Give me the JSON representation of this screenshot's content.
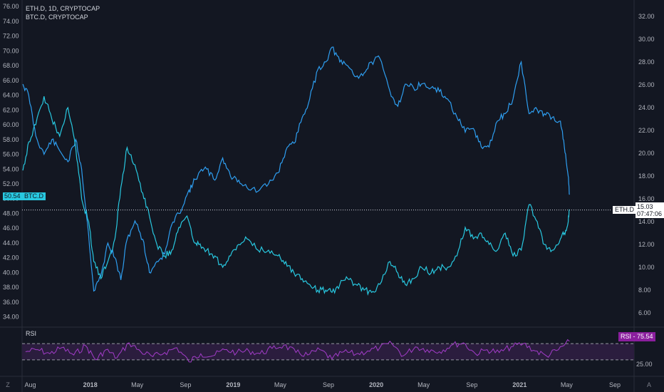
{
  "legend": {
    "eth_symbol": "ETH.D, 1D, CRYPTOCAP",
    "btc_symbol": "BTC.D, CRYPTOCAP"
  },
  "rsi_panel": {
    "title": "RSI",
    "label": "RSI",
    "value": "75.54",
    "level_text": "25.00",
    "upper_level": 70,
    "lower_level": 30
  },
  "tags": {
    "btc_value": "50.54",
    "btc_name": "BTC.D",
    "eth_name": "ETH.D",
    "eth_value": "15.03",
    "countdown": "07:47:06"
  },
  "corner_buttons": {
    "left": "Z",
    "right": "A"
  },
  "colors": {
    "background": "#131722",
    "btc_line": "#2e9ef0",
    "eth_line": "#28c8e0",
    "rsi_line": "#a33cc9",
    "rsi_band": "#2b1d3e",
    "rsi_tag": "#8b1f9e"
  },
  "chart_data": {
    "type": "line",
    "left_axis": {
      "ticks": [
        "76.00",
        "74.00",
        "72.00",
        "70.00",
        "68.00",
        "66.00",
        "64.00",
        "62.00",
        "60.00",
        "58.00",
        "56.00",
        "54.00",
        "52.00",
        "50.00",
        "48.00",
        "46.00",
        "44.00",
        "42.00",
        "40.00",
        "38.00",
        "36.00",
        "34.00"
      ],
      "ylim": [
        33,
        76.5
      ]
    },
    "right_axis": {
      "ticks": [
        "32.00",
        "30.00",
        "28.00",
        "26.00",
        "24.00",
        "22.00",
        "20.00",
        "18.00",
        "16.00",
        "14.00",
        "12.00",
        "10.00",
        "8.00",
        "6.00"
      ],
      "ylim": [
        5,
        33.2
      ]
    },
    "x_ticks": [
      "Aug",
      "2018",
      "May",
      "Sep",
      "2019",
      "May",
      "Sep",
      "2020",
      "May",
      "Sep",
      "2021",
      "May",
      "Sep"
    ],
    "x_tick_dates": [
      "2017-08-01",
      "2018-01-01",
      "2018-05-01",
      "2018-09-01",
      "2019-01-01",
      "2019-05-01",
      "2019-09-01",
      "2020-01-01",
      "2020-05-01",
      "2020-09-01",
      "2021-01-01",
      "2021-05-01",
      "2021-09-01"
    ],
    "xlim": [
      "2017-07-11",
      "2021-10-20"
    ],
    "series": [
      {
        "name": "BTC.D",
        "axis": "left",
        "points": [
          [
            "2017-07-13",
            65.5
          ],
          [
            "2017-07-28",
            64.0
          ],
          [
            "2017-08-15",
            58.5
          ],
          [
            "2017-09-05",
            56.0
          ],
          [
            "2017-09-25",
            58.0
          ],
          [
            "2017-10-15",
            56.5
          ],
          [
            "2017-11-05",
            55.0
          ],
          [
            "2017-11-25",
            58.0
          ],
          [
            "2017-12-10",
            54.0
          ],
          [
            "2017-12-28",
            45.0
          ],
          [
            "2018-01-10",
            37.5
          ],
          [
            "2018-01-28",
            39.5
          ],
          [
            "2018-02-15",
            44.0
          ],
          [
            "2018-03-05",
            42.0
          ],
          [
            "2018-03-20",
            39.0
          ],
          [
            "2018-04-05",
            44.5
          ],
          [
            "2018-04-25",
            47.0
          ],
          [
            "2018-05-15",
            44.5
          ],
          [
            "2018-06-01",
            40.0
          ],
          [
            "2018-06-20",
            41.5
          ],
          [
            "2018-07-10",
            42.5
          ],
          [
            "2018-07-28",
            46.5
          ],
          [
            "2018-08-15",
            48.0
          ],
          [
            "2018-09-05",
            50.5
          ],
          [
            "2018-09-20",
            52.0
          ],
          [
            "2018-10-05",
            53.5
          ],
          [
            "2018-10-25",
            54.0
          ],
          [
            "2018-11-15",
            52.5
          ],
          [
            "2018-12-05",
            55.5
          ],
          [
            "2018-12-25",
            53.0
          ],
          [
            "2019-01-15",
            52.5
          ],
          [
            "2019-02-05",
            51.5
          ],
          [
            "2019-03-05",
            51.0
          ],
          [
            "2019-04-01",
            52.0
          ],
          [
            "2019-04-25",
            53.5
          ],
          [
            "2019-05-15",
            56.5
          ],
          [
            "2019-06-05",
            57.5
          ],
          [
            "2019-06-26",
            61.0
          ],
          [
            "2019-07-15",
            63.5
          ],
          [
            "2019-08-05",
            67.5
          ],
          [
            "2019-08-25",
            68.5
          ],
          [
            "2019-09-10",
            70.5
          ],
          [
            "2019-09-30",
            68.5
          ],
          [
            "2019-10-20",
            68.0
          ],
          [
            "2019-11-10",
            66.5
          ],
          [
            "2019-12-01",
            67.0
          ],
          [
            "2019-12-20",
            68.5
          ],
          [
            "2020-01-10",
            69.0
          ],
          [
            "2020-02-05",
            64.5
          ],
          [
            "2020-02-25",
            62.5
          ],
          [
            "2020-03-15",
            65.5
          ],
          [
            "2020-04-05",
            65.0
          ],
          [
            "2020-04-25",
            65.5
          ],
          [
            "2020-05-20",
            65.0
          ],
          [
            "2020-06-10",
            64.5
          ],
          [
            "2020-07-01",
            63.5
          ],
          [
            "2020-07-25",
            61.0
          ],
          [
            "2020-08-15",
            59.0
          ],
          [
            "2020-09-05",
            59.5
          ],
          [
            "2020-09-25",
            57.0
          ],
          [
            "2020-10-15",
            57.0
          ],
          [
            "2020-11-05",
            60.5
          ],
          [
            "2020-11-25",
            61.5
          ],
          [
            "2020-12-15",
            63.5
          ],
          [
            "2021-01-05",
            68.5
          ],
          [
            "2021-01-25",
            61.5
          ],
          [
            "2021-02-15",
            62.0
          ],
          [
            "2021-03-05",
            61.5
          ],
          [
            "2021-03-25",
            61.0
          ],
          [
            "2021-04-15",
            60.5
          ],
          [
            "2021-04-25",
            57.0
          ],
          [
            "2021-05-05",
            53.0
          ],
          [
            "2021-05-08",
            50.54
          ]
        ]
      },
      {
        "name": "ETH.D",
        "axis": "right",
        "points": [
          [
            "2017-07-13",
            18.5
          ],
          [
            "2017-07-28",
            21.0
          ],
          [
            "2017-08-15",
            22.5
          ],
          [
            "2017-09-05",
            25.0
          ],
          [
            "2017-09-25",
            23.0
          ],
          [
            "2017-10-15",
            21.5
          ],
          [
            "2017-11-05",
            24.0
          ],
          [
            "2017-11-25",
            20.5
          ],
          [
            "2017-12-10",
            16.0
          ],
          [
            "2017-12-28",
            14.0
          ],
          [
            "2018-01-10",
            10.5
          ],
          [
            "2018-01-28",
            9.0
          ],
          [
            "2018-02-15",
            10.5
          ],
          [
            "2018-03-05",
            12.5
          ],
          [
            "2018-03-20",
            17.0
          ],
          [
            "2018-04-05",
            20.5
          ],
          [
            "2018-04-25",
            19.0
          ],
          [
            "2018-05-15",
            16.5
          ],
          [
            "2018-06-01",
            14.5
          ],
          [
            "2018-06-20",
            12.0
          ],
          [
            "2018-07-10",
            11.0
          ],
          [
            "2018-07-28",
            11.5
          ],
          [
            "2018-08-15",
            13.5
          ],
          [
            "2018-09-05",
            14.5
          ],
          [
            "2018-09-20",
            12.5
          ],
          [
            "2018-10-05",
            12.0
          ],
          [
            "2018-10-25",
            11.5
          ],
          [
            "2018-11-15",
            11.0
          ],
          [
            "2018-12-05",
            10.0
          ],
          [
            "2018-12-25",
            11.0
          ],
          [
            "2019-01-15",
            12.0
          ],
          [
            "2019-02-05",
            12.5
          ],
          [
            "2019-03-05",
            11.5
          ],
          [
            "2019-04-01",
            11.5
          ],
          [
            "2019-04-25",
            11.0
          ],
          [
            "2019-05-15",
            10.5
          ],
          [
            "2019-06-05",
            9.5
          ],
          [
            "2019-06-26",
            9.0
          ],
          [
            "2019-07-15",
            8.5
          ],
          [
            "2019-08-05",
            8.0
          ],
          [
            "2019-08-25",
            8.0
          ],
          [
            "2019-09-10",
            7.8
          ],
          [
            "2019-09-30",
            8.5
          ],
          [
            "2019-10-20",
            9.0
          ],
          [
            "2019-11-10",
            8.5
          ],
          [
            "2019-12-01",
            8.0
          ],
          [
            "2019-12-20",
            7.8
          ],
          [
            "2020-01-10",
            8.5
          ],
          [
            "2020-02-05",
            10.5
          ],
          [
            "2020-02-25",
            9.5
          ],
          [
            "2020-03-15",
            8.5
          ],
          [
            "2020-04-05",
            9.0
          ],
          [
            "2020-04-25",
            10.0
          ],
          [
            "2020-05-20",
            9.5
          ],
          [
            "2020-06-10",
            10.0
          ],
          [
            "2020-07-01",
            10.0
          ],
          [
            "2020-07-25",
            11.0
          ],
          [
            "2020-08-15",
            13.5
          ],
          [
            "2020-09-05",
            12.5
          ],
          [
            "2020-09-25",
            13.0
          ],
          [
            "2020-10-15",
            12.0
          ],
          [
            "2020-11-05",
            11.5
          ],
          [
            "2020-11-25",
            13.0
          ],
          [
            "2020-12-15",
            11.0
          ],
          [
            "2021-01-05",
            11.5
          ],
          [
            "2021-01-25",
            15.5
          ],
          [
            "2021-02-15",
            14.0
          ],
          [
            "2021-03-05",
            12.0
          ],
          [
            "2021-03-25",
            11.5
          ],
          [
            "2021-04-15",
            12.5
          ],
          [
            "2021-04-25",
            13.0
          ],
          [
            "2021-05-05",
            14.0
          ],
          [
            "2021-05-08",
            15.03
          ]
        ]
      },
      {
        "name": "RSI",
        "axis": "rsi",
        "ylim": [
          0,
          100
        ],
        "points": [
          [
            "2017-07-20",
            50
          ],
          [
            "2017-08-20",
            55
          ],
          [
            "2017-09-20",
            45
          ],
          [
            "2017-10-20",
            60
          ],
          [
            "2017-11-20",
            42
          ],
          [
            "2017-12-20",
            65
          ],
          [
            "2018-01-15",
            30
          ],
          [
            "2018-02-10",
            55
          ],
          [
            "2018-03-10",
            35
          ],
          [
            "2018-04-10",
            72
          ],
          [
            "2018-05-10",
            50
          ],
          [
            "2018-06-10",
            38
          ],
          [
            "2018-07-10",
            48
          ],
          [
            "2018-08-10",
            60
          ],
          [
            "2018-09-10",
            25
          ],
          [
            "2018-10-10",
            45
          ],
          [
            "2018-11-10",
            40
          ],
          [
            "2018-12-10",
            55
          ],
          [
            "2019-01-10",
            48
          ],
          [
            "2019-02-10",
            52
          ],
          [
            "2019-03-10",
            45
          ],
          [
            "2019-04-10",
            58
          ],
          [
            "2019-05-10",
            66
          ],
          [
            "2019-06-10",
            48
          ],
          [
            "2019-07-10",
            42
          ],
          [
            "2019-08-10",
            55
          ],
          [
            "2019-09-10",
            32
          ],
          [
            "2019-10-10",
            50
          ],
          [
            "2019-11-10",
            44
          ],
          [
            "2019-12-10",
            52
          ],
          [
            "2020-01-10",
            60
          ],
          [
            "2020-02-10",
            70
          ],
          [
            "2020-03-10",
            40
          ],
          [
            "2020-04-10",
            62
          ],
          [
            "2020-05-10",
            55
          ],
          [
            "2020-06-10",
            50
          ],
          [
            "2020-07-10",
            66
          ],
          [
            "2020-08-10",
            72
          ],
          [
            "2020-09-10",
            45
          ],
          [
            "2020-10-10",
            55
          ],
          [
            "2020-11-10",
            48
          ],
          [
            "2020-12-10",
            62
          ],
          [
            "2021-01-10",
            70
          ],
          [
            "2021-02-10",
            52
          ],
          [
            "2021-03-10",
            40
          ],
          [
            "2021-04-10",
            55
          ],
          [
            "2021-05-08",
            75.54
          ]
        ]
      }
    ]
  }
}
